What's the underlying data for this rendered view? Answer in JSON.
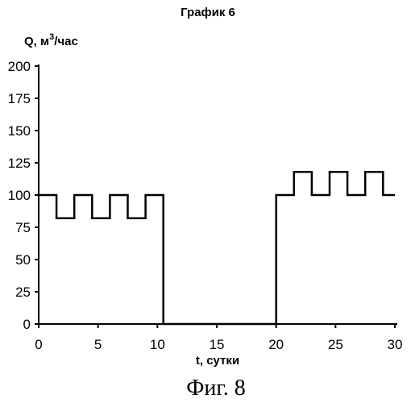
{
  "chart_data": {
    "type": "line",
    "title": "График 6",
    "ylabel": "Q, м3/час",
    "xlabel": "t, сутки",
    "xlim": [
      0,
      30
    ],
    "ylim": [
      0,
      200
    ],
    "xticks": [
      0,
      5,
      10,
      15,
      20,
      25,
      30
    ],
    "yticks": [
      0,
      25,
      50,
      75,
      100,
      125,
      150,
      175,
      200
    ],
    "grid": false,
    "series": [
      {
        "interpolation": "step",
        "points": [
          [
            0,
            100
          ],
          [
            1.5,
            100
          ],
          [
            1.5,
            82
          ],
          [
            3,
            82
          ],
          [
            3,
            100
          ],
          [
            4.5,
            100
          ],
          [
            4.5,
            82
          ],
          [
            6,
            82
          ],
          [
            6,
            100
          ],
          [
            7.5,
            100
          ],
          [
            7.5,
            82
          ],
          [
            9,
            82
          ],
          [
            9,
            100
          ],
          [
            10.5,
            100
          ],
          [
            10.5,
            0
          ],
          [
            20,
            0
          ],
          [
            20,
            100
          ],
          [
            21.5,
            100
          ],
          [
            21.5,
            118
          ],
          [
            23,
            118
          ],
          [
            23,
            100
          ],
          [
            24.5,
            100
          ],
          [
            24.5,
            118
          ],
          [
            26,
            118
          ],
          [
            26,
            100
          ],
          [
            27.5,
            100
          ],
          [
            27.5,
            118
          ],
          [
            29,
            118
          ],
          [
            29,
            100
          ],
          [
            30,
            100
          ]
        ]
      }
    ]
  },
  "caption": "Фиг. 8"
}
